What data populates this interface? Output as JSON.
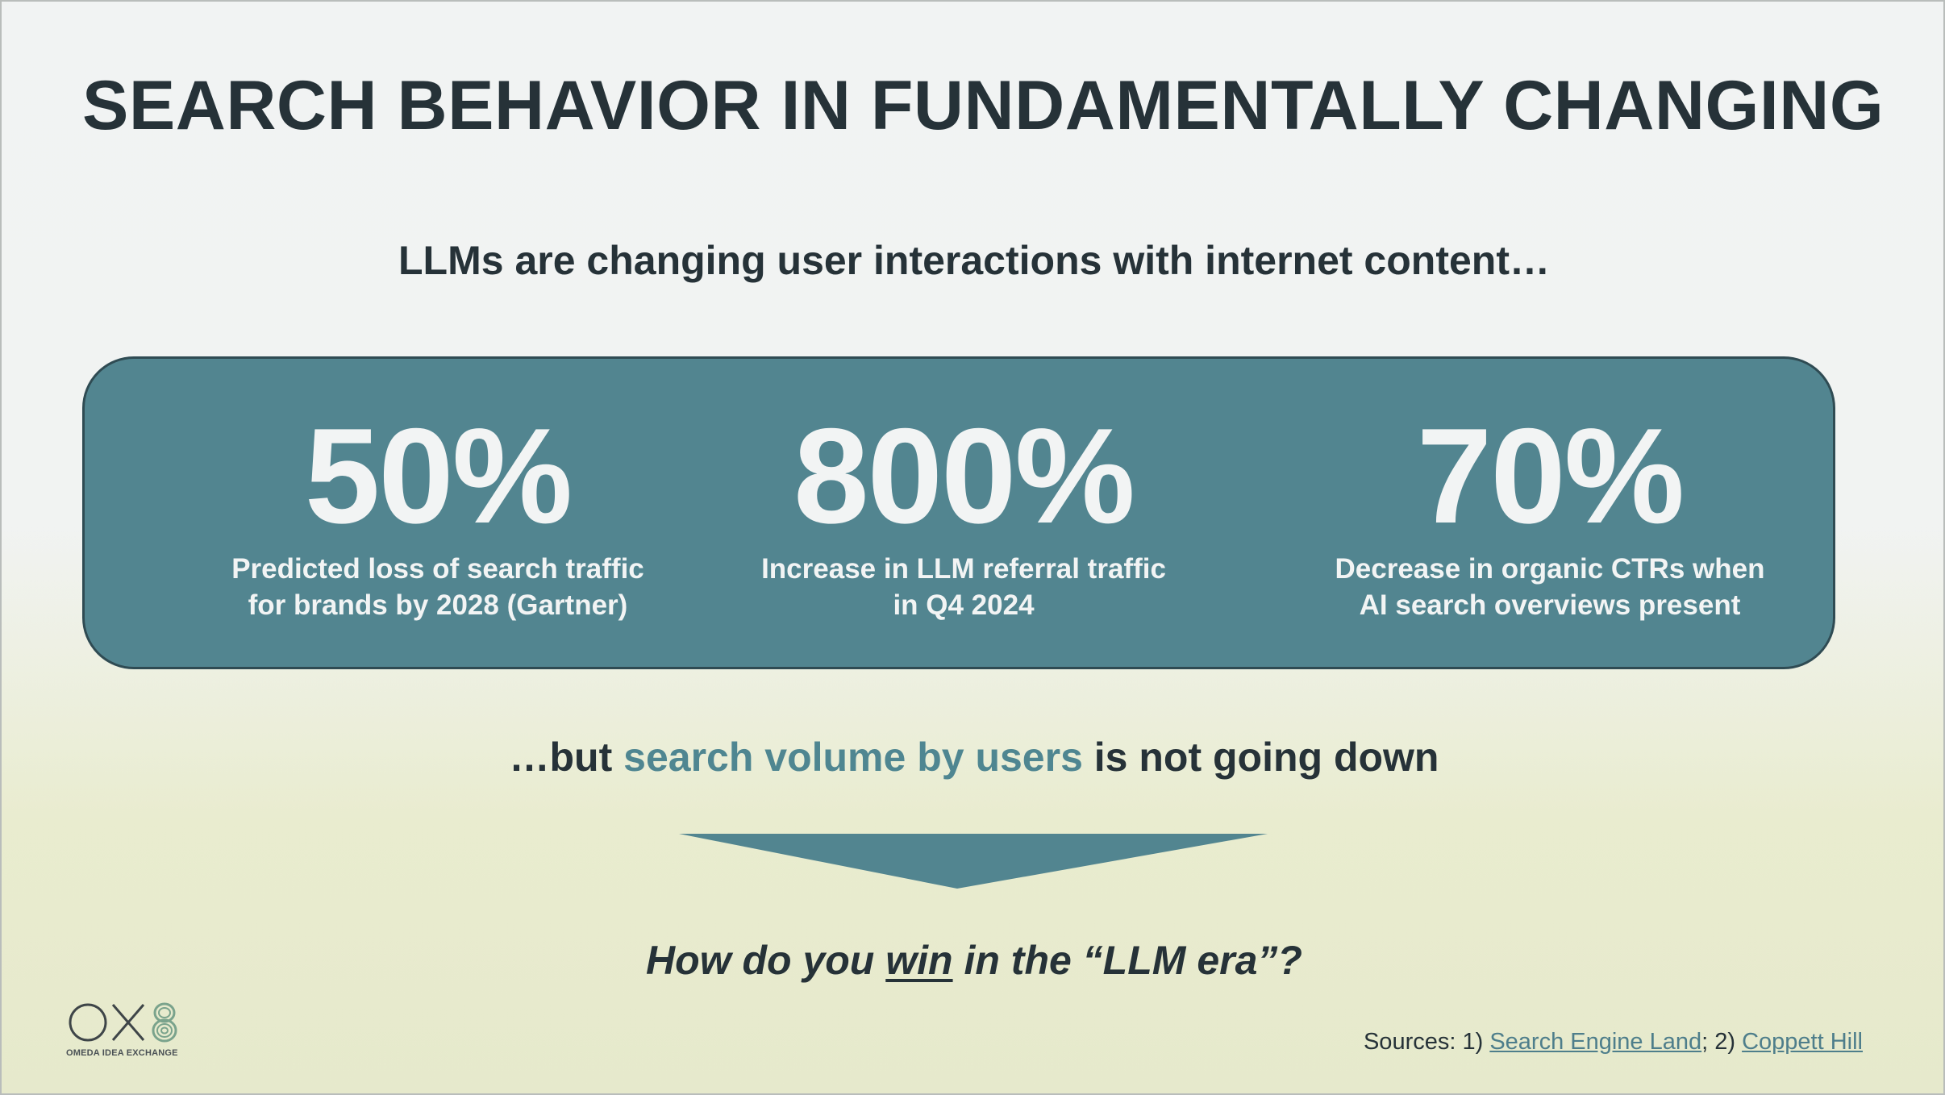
{
  "slide": {
    "title": "SEARCH BEHAVIOR IN FUNDAMENTALLY CHANGING",
    "subtitle": "LLMs are changing user interactions with internet content…",
    "stats": [
      {
        "value": "50%",
        "desc_line1": "Predicted loss of search traffic",
        "desc_line2": "for brands by 2028 (Gartner)"
      },
      {
        "value": "800%",
        "desc_line1": "Increase in LLM referral traffic",
        "desc_line2": "in Q4 2024"
      },
      {
        "value": "70%",
        "desc_line1": "Decrease in organic CTRs when",
        "desc_line2": "AI search overviews present"
      }
    ],
    "tagline": {
      "prefix": "…but ",
      "highlight": "search volume by users",
      "suffix": " is not going down"
    },
    "question": {
      "prefix": "How do you ",
      "underlined": "win",
      "suffix": " in the “LLM era”?"
    },
    "sources": {
      "label": "Sources: 1) ",
      "link1": "Search Engine Land",
      "separator": "; 2) ",
      "link2": "Coppett Hill"
    },
    "logo": {
      "text": "OX8",
      "tagline": "OMEDA IDEA EXCHANGE"
    }
  },
  "colors": {
    "title_text": "#263238",
    "panel_fill": "#528590",
    "panel_border": "#2f4b53",
    "stat_text": "#f2f4f4",
    "highlight": "#4f8691",
    "link": "#4e7e8b",
    "logo_green": "#7aa38c"
  }
}
